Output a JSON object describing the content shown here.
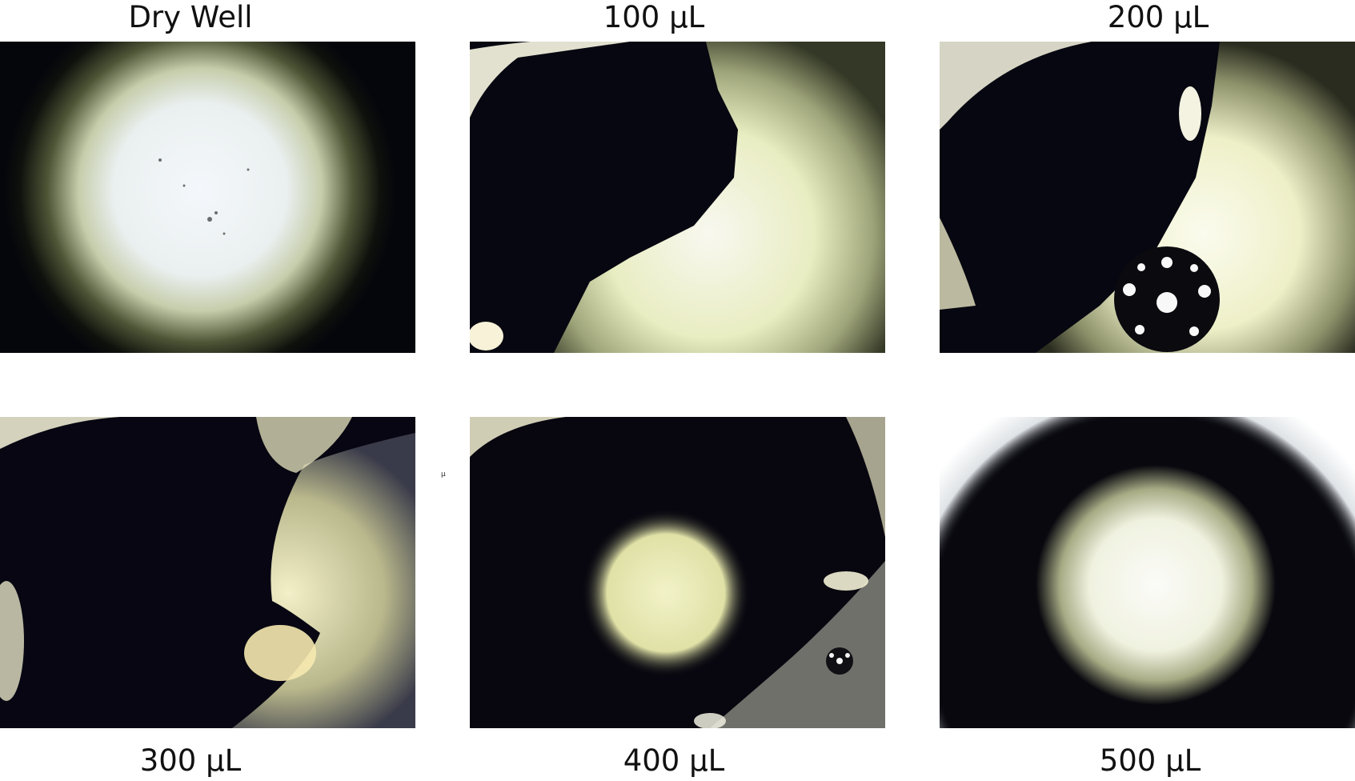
{
  "panels": [
    {
      "id": "dry",
      "label": "Dry Well"
    },
    {
      "id": "v100",
      "label": "100 µL"
    },
    {
      "id": "v200",
      "label": "200 µL"
    },
    {
      "id": "v300",
      "label": "300 µL"
    },
    {
      "id": "v400",
      "label": "400 µL"
    },
    {
      "id": "v500",
      "label": "500 µL"
    }
  ],
  "stray_mark": "µ",
  "colors": {
    "background": "#ffffff",
    "well_dark": "#05060b",
    "light_core": "#f4f7fb",
    "light_warm": "#e9edc2",
    "meniscus": "#fbf8e4"
  }
}
